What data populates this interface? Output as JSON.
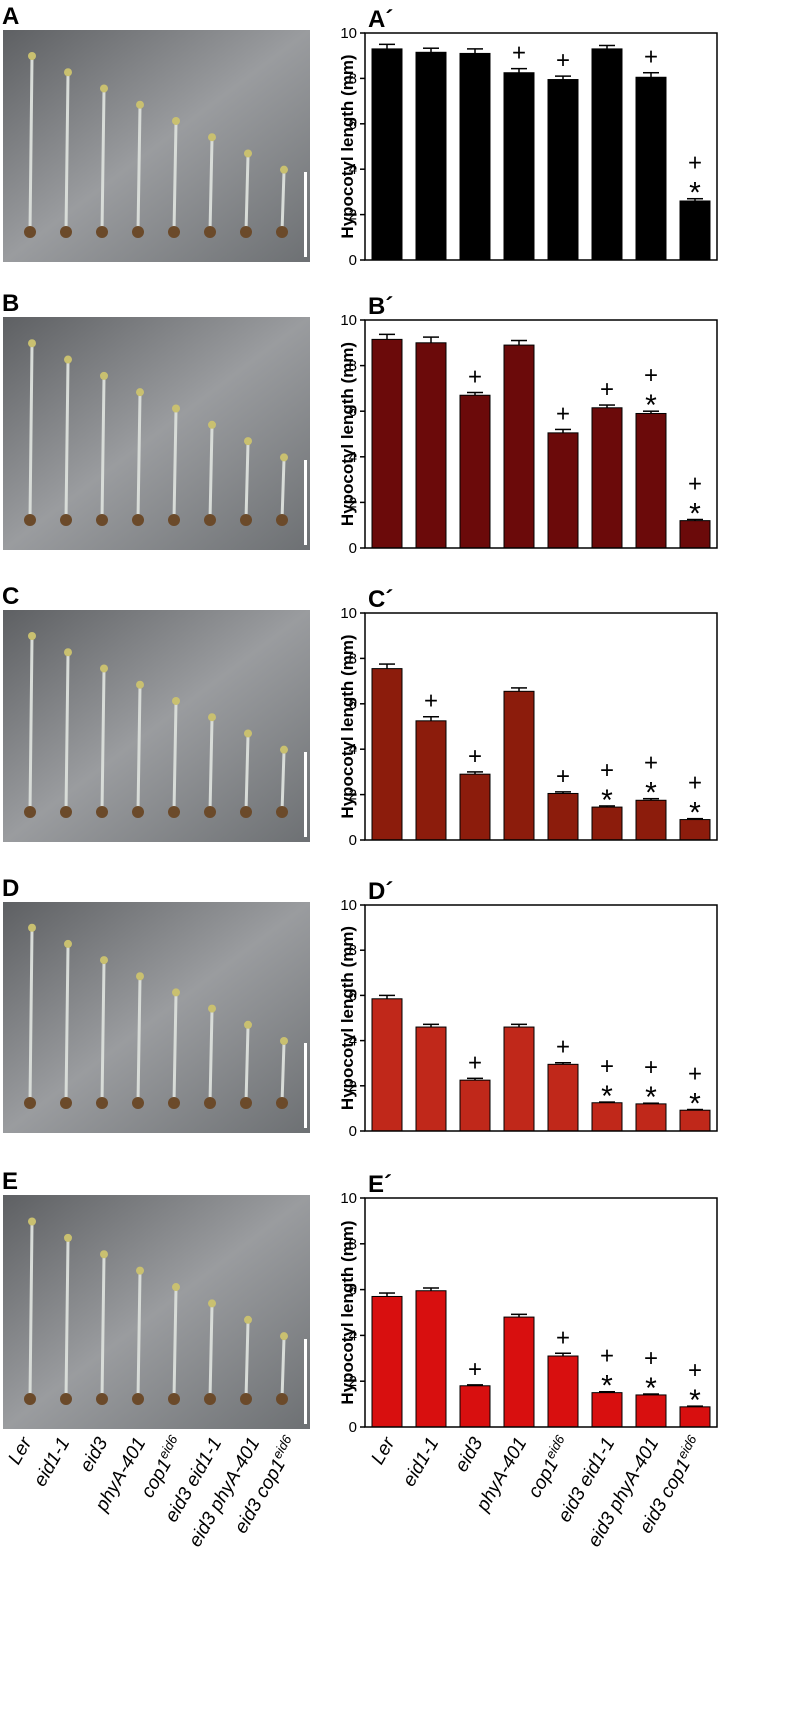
{
  "panels": [
    {
      "letter": "A"
    },
    {
      "letter": "B"
    },
    {
      "letter": "C"
    },
    {
      "letter": "D"
    },
    {
      "letter": "E"
    }
  ],
  "chart_data": [
    {
      "type": "bar",
      "title": "A´",
      "ylabel": "Hypocotyl length (mm)",
      "color": "#000000",
      "values": [
        9.3,
        9.15,
        9.1,
        8.25,
        7.95,
        9.3,
        8.05,
        2.6
      ],
      "errors": [
        0.2,
        0.18,
        0.2,
        0.18,
        0.15,
        0.15,
        0.2,
        0.1
      ],
      "annotations": [
        [],
        [],
        [],
        [
          "+"
        ],
        [
          "+"
        ],
        [],
        [
          "+"
        ],
        [
          "+",
          "*"
        ]
      ],
      "ylim": [
        0,
        10
      ],
      "yticks": [
        0,
        2,
        4,
        6,
        8,
        10
      ]
    },
    {
      "type": "bar",
      "title": "B´",
      "ylabel": "Hypocotyl length (mm)",
      "color": "#6b0a0a",
      "values": [
        9.15,
        9.0,
        6.7,
        8.9,
        5.05,
        6.15,
        5.9,
        1.2
      ],
      "errors": [
        0.22,
        0.25,
        0.12,
        0.2,
        0.15,
        0.12,
        0.1,
        0.05
      ],
      "annotations": [
        [],
        [],
        [
          "+"
        ],
        [],
        [
          "+"
        ],
        [
          "+"
        ],
        [
          "+",
          "*"
        ],
        [
          "+",
          "*"
        ]
      ],
      "ylim": [
        0,
        10
      ],
      "yticks": [
        0,
        2,
        4,
        6,
        8,
        10
      ]
    },
    {
      "type": "bar",
      "title": "C´",
      "ylabel": "Hypocotyl length (mm)",
      "color": "#8c1c0c",
      "values": [
        7.55,
        5.25,
        2.9,
        6.55,
        2.05,
        1.45,
        1.75,
        0.9
      ],
      "errors": [
        0.2,
        0.18,
        0.1,
        0.15,
        0.07,
        0.05,
        0.07,
        0.04
      ],
      "annotations": [
        [],
        [
          "+"
        ],
        [
          "+"
        ],
        [],
        [
          "+"
        ],
        [
          "+",
          "*"
        ],
        [
          "+",
          "*"
        ],
        [
          "+",
          "*"
        ]
      ],
      "ylim": [
        0,
        10
      ],
      "yticks": [
        0,
        2,
        4,
        6,
        8,
        10
      ]
    },
    {
      "type": "bar",
      "title": "D´",
      "ylabel": "Hypocotyl length (mm)",
      "color": "#c0281a",
      "values": [
        5.85,
        4.6,
        2.25,
        4.6,
        2.95,
        1.25,
        1.2,
        0.92
      ],
      "errors": [
        0.15,
        0.12,
        0.08,
        0.12,
        0.07,
        0.03,
        0.03,
        0.03
      ],
      "annotations": [
        [],
        [],
        [
          "+"
        ],
        [],
        [
          "+"
        ],
        [
          "+",
          "*"
        ],
        [
          "+",
          "*"
        ],
        [
          "+",
          "*"
        ]
      ],
      "ylim": [
        0,
        10
      ],
      "yticks": [
        0,
        2,
        4,
        6,
        8,
        10
      ]
    },
    {
      "type": "bar",
      "title": "E´",
      "ylabel": "Hypocotyl length (mm)",
      "color": "#d80f0f",
      "values": [
        5.7,
        5.95,
        1.8,
        4.8,
        3.1,
        1.5,
        1.4,
        0.88
      ],
      "errors": [
        0.15,
        0.12,
        0.04,
        0.12,
        0.12,
        0.04,
        0.04,
        0.03
      ],
      "annotations": [
        [],
        [],
        [
          "+"
        ],
        [],
        [
          "+"
        ],
        [
          "+",
          "*"
        ],
        [
          "+",
          "*"
        ],
        [
          "+",
          "*"
        ]
      ],
      "ylim": [
        0,
        10
      ],
      "yticks": [
        0,
        2,
        4,
        6,
        8,
        10
      ],
      "categories": [
        [
          "Ler"
        ],
        [
          "eid1-1"
        ],
        [
          "eid3"
        ],
        [
          "phyA-401"
        ],
        [
          "cop1",
          "eid6"
        ],
        [
          "eid3 eid1-1"
        ],
        [
          "eid3 phyA-401"
        ],
        [
          "eid3 cop1",
          "eid6"
        ]
      ]
    }
  ]
}
